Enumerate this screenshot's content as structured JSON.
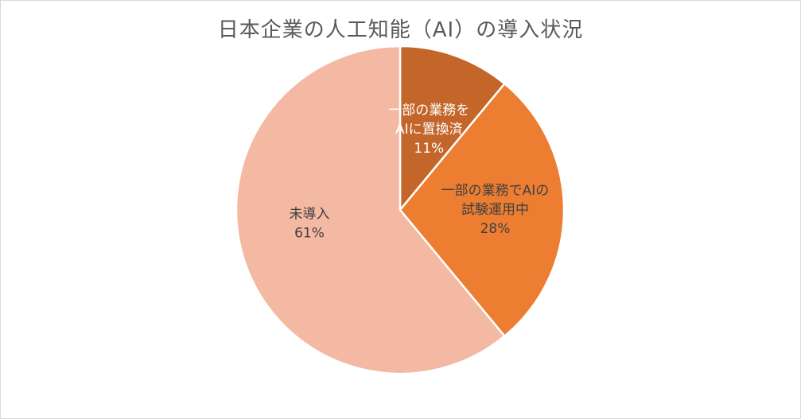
{
  "chart_data": {
    "type": "pie",
    "title": "日本企業の人工知能（AI）の導入状況",
    "slices": [
      {
        "label_lines": [
          "一部の業務を",
          "AIに置換済"
        ],
        "value": 11,
        "value_label": "11%",
        "color": "#c4652a",
        "text_color": "#ffffff"
      },
      {
        "label_lines": [
          "一部の業務でAIの",
          "試験運用中"
        ],
        "value": 28,
        "value_label": "28%",
        "color": "#ed7d31",
        "text_color": "#404040"
      },
      {
        "label_lines": [
          "未導入"
        ],
        "value": 61,
        "value_label": "61%",
        "color": "#f4b9a3",
        "text_color": "#404040"
      }
    ],
    "start_angle": "12 o'clock",
    "direction": "clockwise",
    "legend": "none"
  }
}
